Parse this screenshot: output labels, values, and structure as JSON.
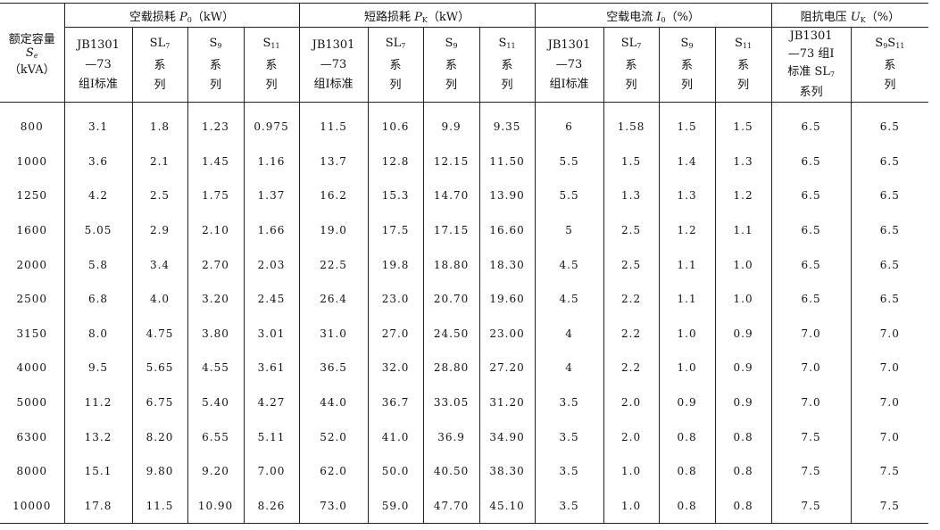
{
  "header": {
    "capacity_col": {
      "line1": "额定容量",
      "line2_sym": "S",
      "line2_sub": "e",
      "line3": "（kVA）"
    },
    "groups": [
      {
        "prefix": "空载损耗 ",
        "sym": "P",
        "sub": "0",
        "suffix": "（kW）"
      },
      {
        "prefix": "短路损耗 ",
        "sym": "P",
        "sub": "K",
        "suffix": "（kW）"
      },
      {
        "prefix": "空载电流 ",
        "sym": "I",
        "sub": "0",
        "suffix": "（%）"
      },
      {
        "prefix": "阻抗电压 ",
        "sym": "U",
        "sub": "K",
        "suffix": "（%）"
      }
    ],
    "sub_cols": {
      "jb_std": {
        "l1": "JB1301",
        "l2": "—73",
        "l3": "组Ⅰ标准"
      },
      "sl7": {
        "base": "SL",
        "sub": "7",
        "l2": "系",
        "l3": "列"
      },
      "s9": {
        "base": "S",
        "sub": "9",
        "l2": "系",
        "l3": "列"
      },
      "s11": {
        "base": "S",
        "sub": "11",
        "l2": "系",
        "l3": "列"
      },
      "uk_jb": {
        "l1": "JB1301",
        "l2": "—73 组Ⅰ",
        "l3_text": "标准 SL",
        "l3_sub": "7",
        "l4": "系列"
      },
      "uk_s": {
        "base1": "S",
        "sub1": "9",
        "base2": "S",
        "sub2": "11",
        "l2": "系",
        "l3": "列"
      }
    }
  },
  "rows": [
    [
      "800",
      "3.1",
      "1.8",
      "1.23",
      "0.975",
      "11.5",
      "10.6",
      "9.9",
      "9.35",
      "6",
      "1.58",
      "1.5",
      "1.5",
      "6.5",
      "6.5"
    ],
    [
      "1000",
      "3.6",
      "2.1",
      "1.45",
      "1.16",
      "13.7",
      "12.8",
      "12.15",
      "11.50",
      "5.5",
      "1.5",
      "1.4",
      "1.3",
      "6.5",
      "6.5"
    ],
    [
      "1250",
      "4.2",
      "2.5",
      "1.75",
      "1.37",
      "16.2",
      "15.3",
      "14.70",
      "13.90",
      "5.5",
      "1.3",
      "1.3",
      "1.2",
      "6.5",
      "6.5"
    ],
    [
      "1600",
      "5.05",
      "2.9",
      "2.10",
      "1.66",
      "19.0",
      "17.5",
      "17.15",
      "16.60",
      "5",
      "2.5",
      "1.2",
      "1.1",
      "6.5",
      "6.5"
    ],
    [
      "2000",
      "5.8",
      "3.4",
      "2.70",
      "2.03",
      "22.5",
      "19.8",
      "18.80",
      "18.30",
      "4.5",
      "2.5",
      "1.1",
      "1.0",
      "6.5",
      "6.5"
    ],
    [
      "2500",
      "6.8",
      "4.0",
      "3.20",
      "2.45",
      "26.4",
      "23.0",
      "20.70",
      "19.60",
      "4.5",
      "2.2",
      "1.1",
      "1.0",
      "6.5",
      "6.5"
    ],
    [
      "3150",
      "8.0",
      "4.75",
      "3.80",
      "3.01",
      "31.0",
      "27.0",
      "24.50",
      "23.00",
      "4",
      "2.2",
      "1.0",
      "0.9",
      "7.0",
      "7.0"
    ],
    [
      "4000",
      "9.5",
      "5.65",
      "4.55",
      "3.61",
      "36.5",
      "32.0",
      "28.80",
      "27.20",
      "4",
      "2.2",
      "1.0",
      "0.9",
      "7.0",
      "7.0"
    ],
    [
      "5000",
      "11.2",
      "6.75",
      "5.40",
      "4.27",
      "44.0",
      "36.7",
      "33.05",
      "31.20",
      "3.5",
      "2.0",
      "0.9",
      "0.9",
      "7.0",
      "7.0"
    ],
    [
      "6300",
      "13.2",
      "8.20",
      "6.55",
      "5.11",
      "52.0",
      "41.0",
      "36.9",
      "34.90",
      "3.5",
      "2.0",
      "0.8",
      "0.8",
      "7.5",
      "7.0"
    ],
    [
      "8000",
      "15.1",
      "9.80",
      "9.20",
      "7.00",
      "62.0",
      "50.0",
      "40.50",
      "38.30",
      "3.5",
      "1.0",
      "0.8",
      "0.8",
      "7.5",
      "7.5"
    ],
    [
      "10000",
      "17.8",
      "11.5",
      "10.90",
      "8.26",
      "73.0",
      "59.0",
      "47.70",
      "45.10",
      "3.5",
      "1.0",
      "0.8",
      "0.8",
      "7.5",
      "7.5"
    ]
  ]
}
